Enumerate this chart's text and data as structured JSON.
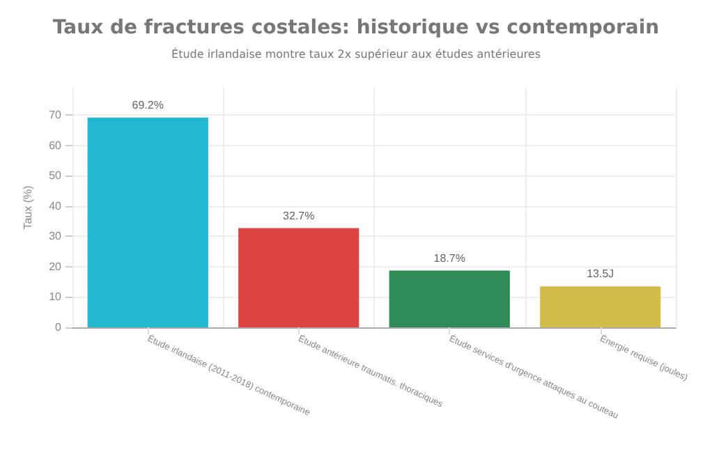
{
  "chart_data": {
    "type": "bar",
    "title": "Taux de fractures costales: historique vs contemporain",
    "subtitle": "Étude irlandaise montre taux 2x supérieur aux études antérieures",
    "ylabel": "Taux (%)",
    "categories": [
      "Étude irlandaise (2011-2018) contemporaine",
      "Étude antérieure traumatis. thoraciques",
      "Étude services d'urgence attaques au couteau",
      "Énergie requise (joules)"
    ],
    "values": [
      69.2,
      32.7,
      18.7,
      13.5
    ],
    "colors": [
      "#22b8cf",
      "#dc4444",
      "#2e8b57",
      "#d4bc4a"
    ],
    "value_labels": [
      "69.2%",
      "32.7%",
      "18.7%",
      "13.5J"
    ],
    "ylim": [
      0,
      79
    ],
    "yticks": [
      0,
      10,
      20,
      30,
      40,
      50,
      60,
      70
    ],
    "grid": true
  }
}
